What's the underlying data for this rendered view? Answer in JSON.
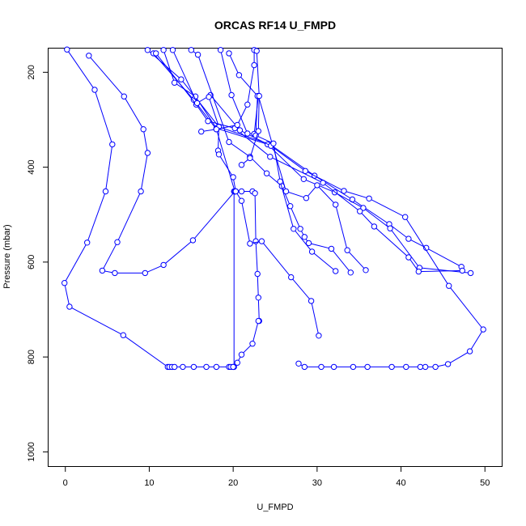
{
  "chart_data": {
    "type": "line",
    "title": "ORCAS RF14 U_FMPD",
    "xlabel": "U_FMPD",
    "ylabel": "Pressure (mbar)",
    "xlim": [
      -2,
      52
    ],
    "ylim": [
      1030,
      150
    ],
    "y_reversed": true,
    "x_ticks": [
      0,
      10,
      20,
      30,
      40,
      50
    ],
    "y_ticks": [
      200,
      400,
      600,
      800,
      1000
    ],
    "grid": false,
    "legend": "none",
    "line_color": "#0000ff",
    "marker": "open-circle",
    "series": [
      {
        "x": [
          0.2,
          3.5,
          5.6,
          4.8,
          2.6,
          -0.1,
          0.5,
          6.9,
          12.2,
          12.4,
          12.7,
          13.0,
          14.0,
          15.3,
          16.8,
          18.0,
          19.5,
          19.7,
          20.0
        ],
        "y": [
          152,
          237,
          352,
          451,
          559,
          644,
          694,
          754,
          821,
          821,
          821,
          821,
          821,
          821,
          821,
          821,
          821,
          821,
          821
        ]
      },
      {
        "x": [
          2.8,
          7.0,
          9.3,
          9.8,
          9.0,
          6.2,
          4.4,
          5.9,
          9.5,
          11.7,
          15.2,
          20.2,
          20.3,
          20.1,
          20.1,
          20.0
        ],
        "y": [
          165,
          251,
          320,
          370,
          451,
          558,
          618,
          623,
          623,
          606,
          554,
          451,
          451,
          451,
          821,
          821
        ]
      },
      {
        "x": [
          9.8,
          13.8,
          18.3,
          24.4,
          29.7,
          34.2,
          38.6,
          40.9,
          43.0,
          47.2
        ],
        "y": [
          153,
          215,
          315,
          352,
          418,
          468,
          520,
          551,
          570,
          610
        ]
      },
      {
        "x": [
          10.5,
          15.3,
          18.0,
          20.2,
          21.0,
          22.3,
          22.6,
          22.7,
          22.9,
          23.0,
          23.1,
          23.0,
          22.3,
          21.0,
          20.5
        ],
        "y": [
          160,
          258,
          320,
          451,
          451,
          451,
          455,
          556,
          625,
          675,
          724,
          724,
          772,
          795,
          812
        ]
      },
      {
        "x": [
          11.7,
          13.0,
          15.5,
          18.0,
          24.1,
          28.4,
          32.1,
          35.5,
          38.7,
          42.2,
          48.3
        ],
        "y": [
          153,
          222,
          251,
          318,
          352,
          425,
          453,
          486,
          529,
          612,
          623
        ]
      },
      {
        "x": [
          10.8,
          15.6,
          17.0,
          20.2,
          24.4,
          30.7,
          35.1,
          36.8,
          40.9,
          42.1,
          47.3
        ],
        "y": [
          160,
          268,
          303,
          318,
          378,
          433,
          493,
          525,
          590,
          620,
          618
        ]
      },
      {
        "x": [
          12.8,
          15.7,
          17.3,
          20.8,
          24.5,
          28.6,
          33.2,
          36.2,
          40.5,
          45.7,
          49.8,
          48.2,
          45.6,
          44.1,
          42.9,
          42.3,
          40.6,
          38.9,
          36.0,
          34.3,
          32.0,
          30.5,
          28.5,
          27.8
        ],
        "y": [
          153,
          265,
          248,
          322,
          355,
          408,
          450,
          466,
          505,
          650,
          742,
          788,
          815,
          821,
          821,
          821,
          821,
          821,
          821,
          821,
          821,
          821,
          821,
          814
        ]
      },
      {
        "x": [
          17.1,
          18.3,
          18.2,
          18.3,
          20.0,
          20.3,
          21.0,
          22.0,
          23.4,
          26.9,
          29.3,
          30.2
        ],
        "y": [
          252,
          315,
          365,
          373,
          421,
          451,
          471,
          561,
          556,
          632,
          682,
          755
        ]
      },
      {
        "x": [
          15.0,
          15.8,
          19.5,
          22.0,
          24.0,
          25.8,
          26.8,
          28.0,
          28.5,
          29.0,
          31.7,
          34.0
        ],
        "y": [
          153,
          163,
          347,
          378,
          413,
          440,
          482,
          530,
          547,
          560,
          572,
          622
        ]
      },
      {
        "x": [
          18.5,
          19.8,
          21.7,
          22.5,
          23.0,
          26.3,
          28.7,
          30.0,
          32.2,
          33.6,
          35.8
        ],
        "y": [
          153,
          248,
          329,
          330,
          250,
          451,
          465,
          438,
          479,
          575,
          617
        ]
      },
      {
        "x": [
          19.5,
          20.7,
          22.9,
          22.7,
          24.8,
          25.6,
          27.2,
          29.4,
          32.2
        ],
        "y": [
          160,
          206,
          250,
          333,
          350,
          430,
          530,
          578,
          619
        ]
      },
      {
        "x": [
          22.5,
          22.5,
          21.7,
          20.5,
          18.0,
          16.2
        ],
        "y": [
          153,
          185,
          268,
          311,
          320,
          325
        ]
      },
      {
        "x": [
          22.8,
          23.1,
          23.0,
          22.0,
          21.0
        ],
        "y": [
          155,
          250,
          324,
          381,
          395
        ]
      }
    ]
  }
}
